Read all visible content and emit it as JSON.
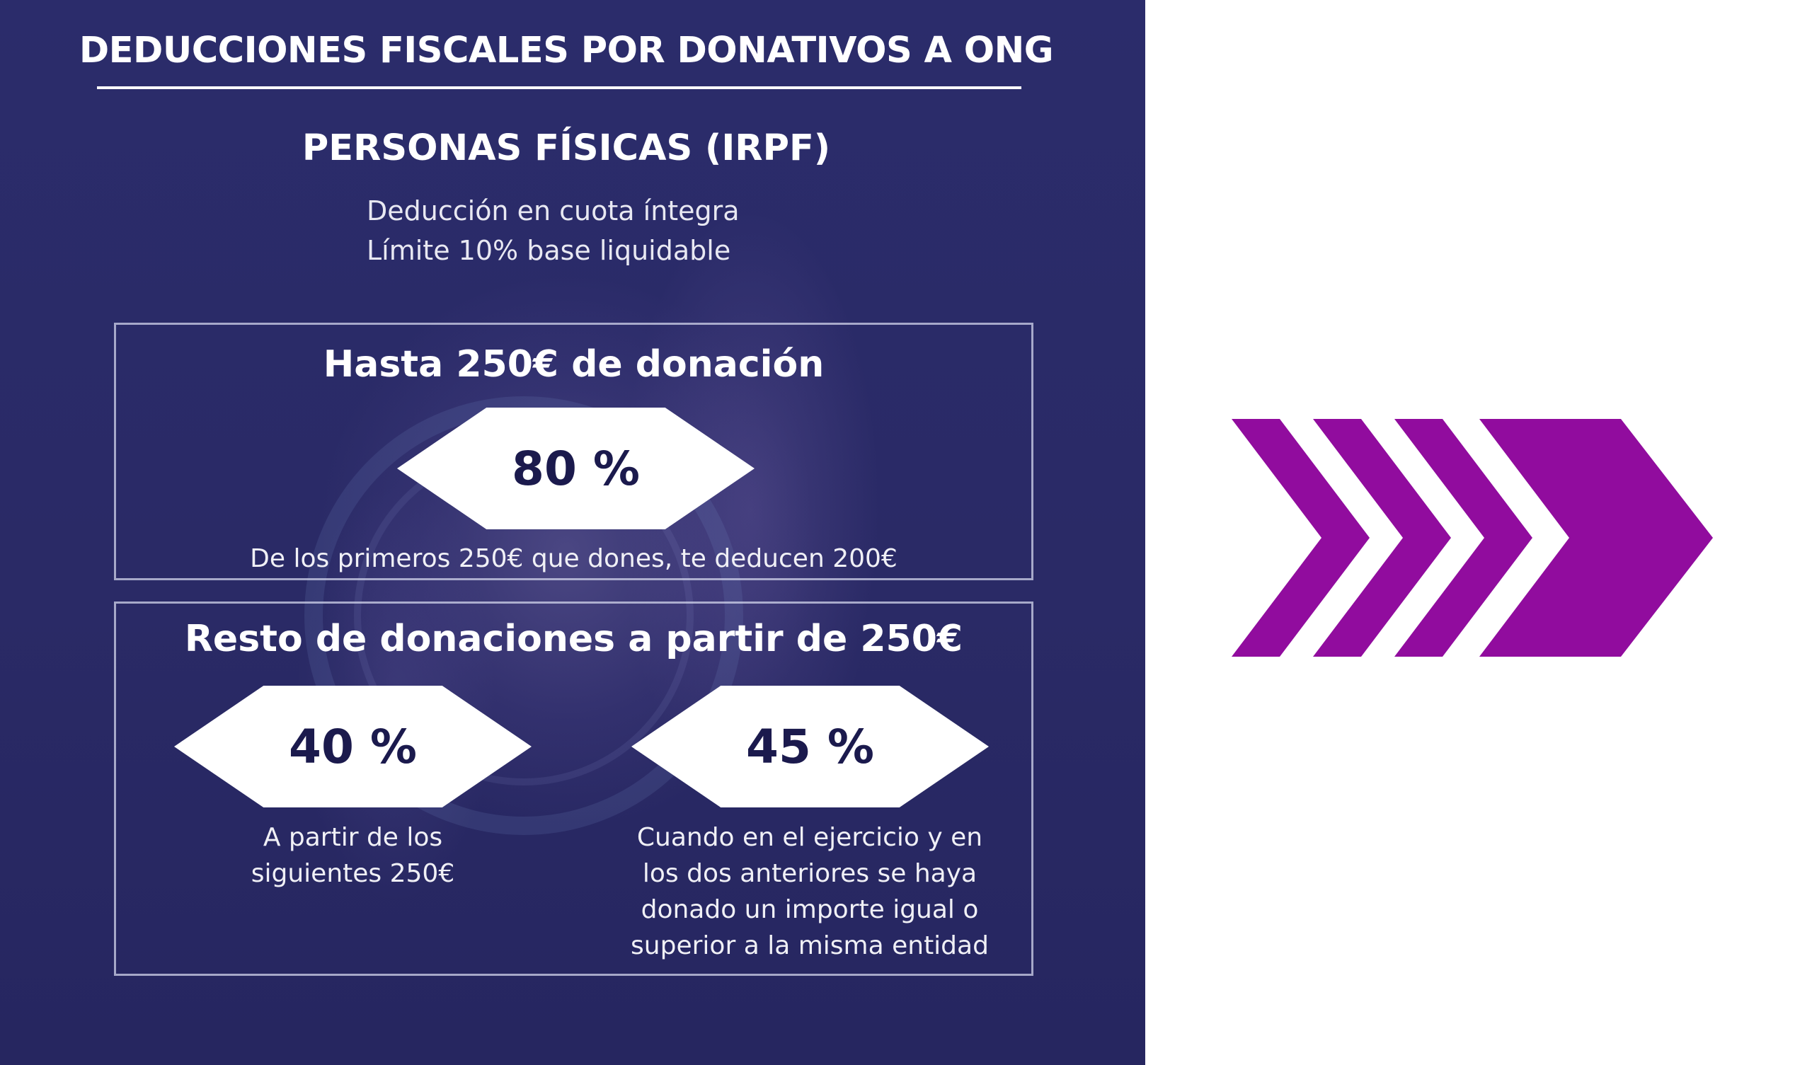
{
  "title": "DEDUCCIONES FISCALES POR DONATIVOS A ONG",
  "subtitle": "PERSONAS FÍSICAS (IRPF)",
  "description": [
    "Deducción en cuota íntegra",
    "Límite 10% base liquidable"
  ],
  "section1": {
    "heading": "Hasta 250€ de donación",
    "percent": "80 %",
    "note": "De los primeros 250€ que dones, te deducen 200€"
  },
  "section2": {
    "heading": "Resto de donaciones a partir de 250€",
    "left": {
      "percent": "40 %",
      "note_lines": [
        "A partir de los",
        "siguientes 250€"
      ]
    },
    "right": {
      "percent": "45 %",
      "note_lines": [
        "Cuando en el ejercicio y en",
        "los dos anteriores se haya",
        "donado un importe igual o",
        "superior a la misma entidad"
      ]
    }
  },
  "colors": {
    "panel": "#2a2a66",
    "hexagon": "#ffffff",
    "percent_text": "#1b1a4d",
    "chevron": "#910c9e"
  },
  "icons": {
    "arrow": "chevron-arrow-icon"
  }
}
